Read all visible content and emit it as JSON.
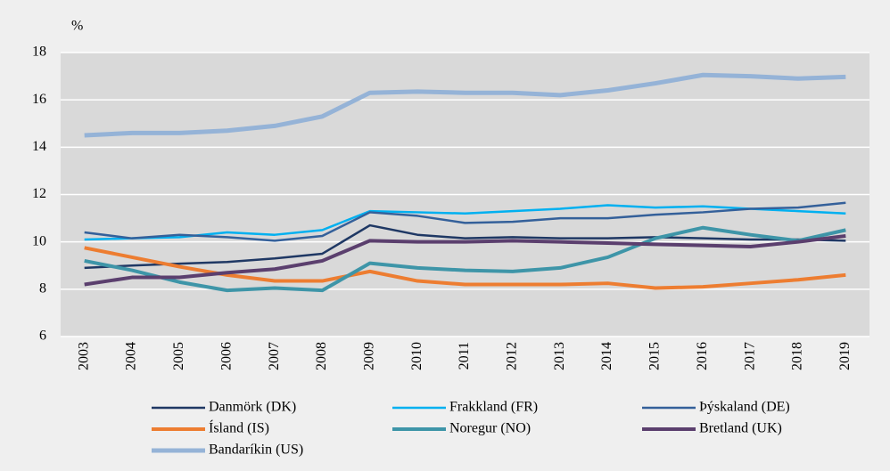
{
  "chart_data": {
    "type": "line",
    "y_label": "%",
    "categories": [
      "2003",
      "2004",
      "2005",
      "2006",
      "2007",
      "2008",
      "2009",
      "2010",
      "2011",
      "2012",
      "2013",
      "2014",
      "2015",
      "2016",
      "2017",
      "2018",
      "2019"
    ],
    "ylim": [
      6,
      18
    ],
    "yticks": [
      6,
      8,
      10,
      12,
      14,
      16,
      18
    ],
    "grid": true,
    "series": [
      {
        "name": "Danmörk (DK)",
        "color": "#1f3864",
        "values": [
          8.9,
          9.0,
          9.08,
          9.15,
          9.3,
          9.5,
          10.7,
          10.3,
          10.15,
          10.2,
          10.15,
          10.15,
          10.2,
          10.15,
          10.1,
          10.1,
          10.05
        ]
      },
      {
        "name": "Frakkland (FR)",
        "color": "#00b0f0",
        "values": [
          10.1,
          10.15,
          10.2,
          10.4,
          10.3,
          10.5,
          11.3,
          11.25,
          11.2,
          11.3,
          11.4,
          11.55,
          11.45,
          11.5,
          11.4,
          11.3,
          11.2
        ]
      },
      {
        "name": "Þýskaland (DE)",
        "color": "#34609a",
        "values": [
          10.4,
          10.15,
          10.3,
          10.2,
          10.05,
          10.25,
          11.25,
          11.1,
          10.8,
          10.85,
          11.0,
          11.0,
          11.15,
          11.25,
          11.4,
          11.45,
          11.65
        ]
      },
      {
        "name": "Ísland (IS)",
        "color": "#ed7d31",
        "values": [
          9.75,
          9.35,
          8.95,
          8.6,
          8.35,
          8.35,
          8.75,
          8.35,
          8.2,
          8.2,
          8.2,
          8.25,
          8.05,
          8.1,
          8.25,
          8.4,
          8.6
        ]
      },
      {
        "name": "Noregur (NO)",
        "color": "#3e95a8",
        "values": [
          9.2,
          8.8,
          8.3,
          7.95,
          8.05,
          7.95,
          9.1,
          8.9,
          8.8,
          8.75,
          8.9,
          9.35,
          10.15,
          10.6,
          10.3,
          10.05,
          10.5
        ]
      },
      {
        "name": "Bretland  (UK)",
        "color": "#5b3f6e",
        "values": [
          8.2,
          8.5,
          8.5,
          8.7,
          8.85,
          9.2,
          10.05,
          10.0,
          10.0,
          10.05,
          10.0,
          9.95,
          9.9,
          9.85,
          9.8,
          10.0,
          10.25
        ]
      },
      {
        "name": "Bandaríkin (US)",
        "color": "#95b3d7",
        "values": [
          14.5,
          14.6,
          14.6,
          14.7,
          14.9,
          15.3,
          16.3,
          16.35,
          16.3,
          16.3,
          16.2,
          16.4,
          16.7,
          17.05,
          17.0,
          16.9,
          16.97
        ]
      }
    ]
  }
}
